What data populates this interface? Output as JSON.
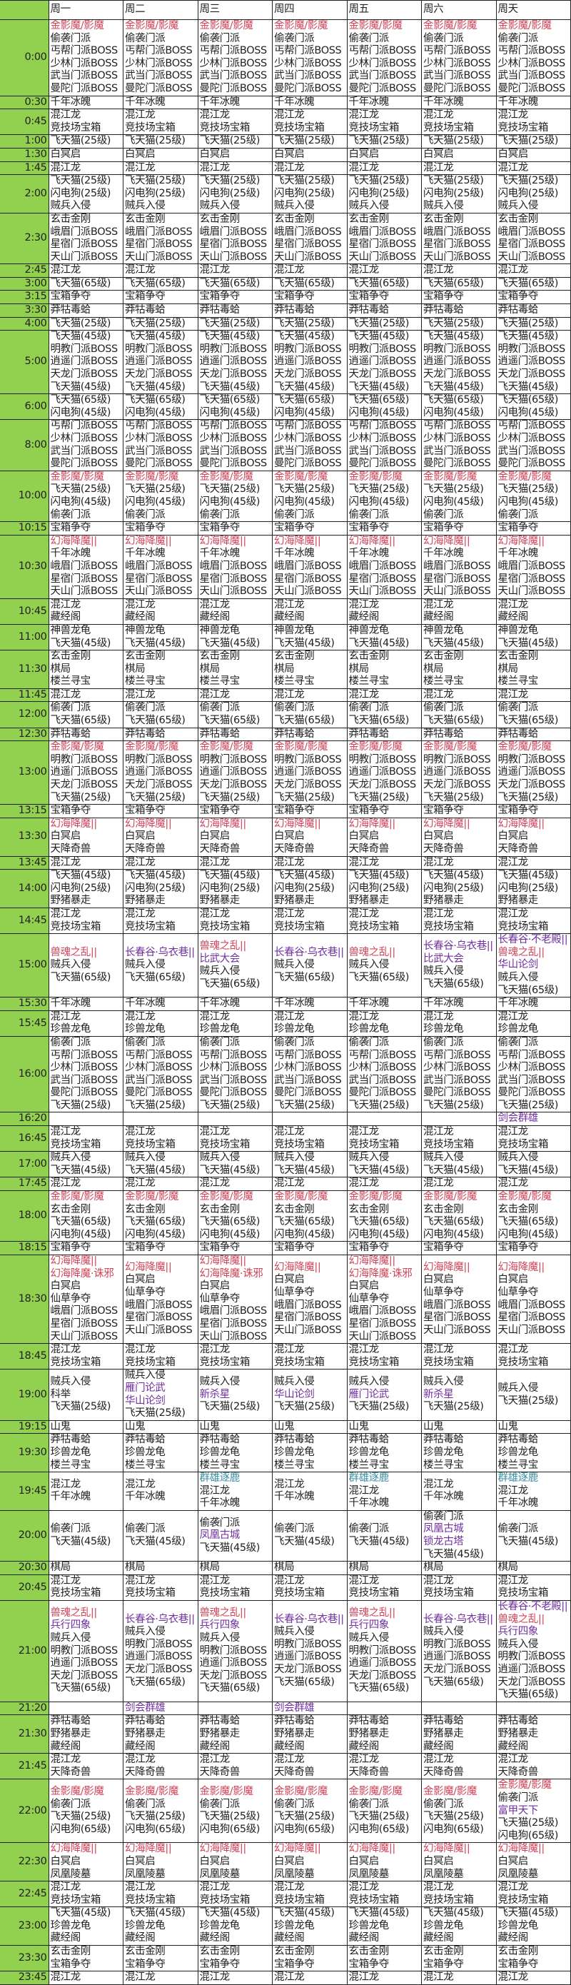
{
  "colors": {
    "red": "#d0455a",
    "purple": "#7030a0",
    "teal": "#3a8ca0",
    "time_bg": "#92d050"
  },
  "days": [
    "周一",
    "周二",
    "周三",
    "周四",
    "周五",
    "周六",
    "周天"
  ],
  "rows": [
    {
      "time": "0:00",
      "all": [
        {
          "t": "金影魔/影魔",
          "c": "red"
        },
        "偷袭门派",
        "丐帮门派BOSS",
        "少林门派BOSS",
        "武当门派BOSS",
        "曼陀门派BOSS"
      ]
    },
    {
      "time": "0:30",
      "all": [
        "千年冰魄"
      ]
    },
    {
      "time": "0:45",
      "all": [
        "混江龙",
        "竞技场宝箱"
      ]
    },
    {
      "time": "1:00",
      "all": [
        "飞天猫(25级)"
      ]
    },
    {
      "time": "1:30",
      "all": [
        "白冥启"
      ]
    },
    {
      "time": "1:45",
      "all": [
        "混江龙"
      ]
    },
    {
      "time": "2:00",
      "all": [
        "飞天猫(25级)",
        "闪电狗(25级)",
        "贼兵入侵"
      ]
    },
    {
      "time": "2:30",
      "all": [
        "玄击金刚",
        "峨眉门派BOSS",
        "星宿门派BOSS",
        "天山门派BOSS"
      ]
    },
    {
      "time": "2:45",
      "all": [
        "混江龙"
      ]
    },
    {
      "time": "3:00",
      "all": [
        "飞天猫(65级)"
      ]
    },
    {
      "time": "3:15",
      "all": [
        "宝箱争夺"
      ]
    },
    {
      "time": "3:30",
      "all": [
        "莽牯毒蛤"
      ]
    },
    {
      "time": "4:00",
      "all": [
        "飞天猫(25级)"
      ]
    },
    {
      "time": "5:00",
      "all": [
        "飞天猫(45级)",
        "明教门派BOSS",
        "逍遥门派BOSS",
        "天龙门派BOSS",
        "飞天猫(45级)"
      ]
    },
    {
      "time": "6:00",
      "all": [
        "飞天猫(65级)",
        "闪电狗(45级)"
      ]
    },
    {
      "time": "8:00",
      "all": [
        "丐帮门派BOSS",
        "少林门派BOSS",
        "武当门派BOSS",
        "曼陀门派BOSS"
      ]
    },
    {
      "time": "10:00",
      "all": [
        {
          "t": "金影魔/影魔",
          "c": "red"
        },
        "飞天猫(25级)",
        "闪电狗(45级)",
        "偷袭门派"
      ]
    },
    {
      "time": "10:15",
      "all": [
        "宝箱争夺"
      ]
    },
    {
      "time": "10:30",
      "all": [
        {
          "t": "幻海降魔||",
          "c": "red"
        },
        "千年冰魄",
        "峨眉门派BOSS",
        "星宿门派BOSS",
        "天山门派BOSS"
      ]
    },
    {
      "time": "10:45",
      "all": [
        "混江龙",
        "藏经阁"
      ]
    },
    {
      "time": "11:00",
      "all": [
        "神兽龙龟",
        "飞天猫(45级)"
      ]
    },
    {
      "time": "11:30",
      "all": [
        "玄击金刚",
        "棋局",
        "楼兰寻宝"
      ]
    },
    {
      "time": "11:45",
      "all": [
        "混江龙"
      ]
    },
    {
      "time": "12:00",
      "all": [
        "偷袭门派",
        "飞天猫(65级)"
      ]
    },
    {
      "time": "12:30",
      "all": [
        "莽牯毒蛤"
      ]
    },
    {
      "time": "13:00",
      "all": [
        {
          "t": "金影魔/影魔",
          "c": "red"
        },
        "明教门派BOSS",
        "逍遥门派BOSS",
        "天龙门派BOSS",
        "飞天猫(25级)"
      ]
    },
    {
      "time": "13:15",
      "all": [
        "宝箱争夺"
      ]
    },
    {
      "time": "13:30",
      "all": [
        {
          "t": "幻海降魔||",
          "c": "red"
        },
        "白冥启",
        "天降奇兽"
      ]
    },
    {
      "time": "13:45",
      "all": [
        "混江龙"
      ]
    },
    {
      "time": "14:00",
      "all": [
        "飞天猫(45级)",
        "闪电狗(25级)",
        "野猪暴走"
      ]
    },
    {
      "time": "14:45",
      "all": [
        "混江龙",
        "竞技场宝箱"
      ]
    },
    {
      "time": "15:00",
      "days": [
        [
          {
            "t": "兽魂之乱||",
            "c": "red"
          },
          "贼兵入侵",
          "飞天猫(65级)"
        ],
        [
          {
            "t": "长春谷·乌衣巷||",
            "c": "purple"
          },
          "贼兵入侵",
          "飞天猫(65级)"
        ],
        [
          {
            "t": "兽魂之乱||",
            "c": "red"
          },
          {
            "t": "比武大会",
            "c": "purple"
          },
          "贼兵入侵",
          "飞天猫(65级)"
        ],
        [
          {
            "t": "长春谷·乌衣巷||",
            "c": "purple"
          },
          "贼兵入侵",
          "飞天猫(65级)"
        ],
        [
          {
            "t": "兽魂之乱||",
            "c": "red"
          },
          "贼兵入侵",
          "飞天猫(65级)"
        ],
        [
          {
            "t": "长春谷·乌衣巷||",
            "c": "purple"
          },
          {
            "t": "比武大会",
            "c": "purple"
          },
          "贼兵入侵",
          "飞天猫(65级)"
        ],
        [
          {
            "t": "长春谷·不老殿||",
            "c": "purple"
          },
          {
            "t": "兽魂之乱||",
            "c": "red"
          },
          {
            "t": "华山论剑",
            "c": "purple"
          },
          "贼兵入侵",
          "飞天猫(65级)"
        ]
      ]
    },
    {
      "time": "15:30",
      "all": [
        "千年冰魄"
      ]
    },
    {
      "time": "15:45",
      "all": [
        "混江龙",
        "珍兽龙龟"
      ]
    },
    {
      "time": "16:00",
      "all": [
        "偷袭门派",
        "丐帮门派BOSS",
        "少林门派BOSS",
        "武当门派BOSS",
        "曼陀门派BOSS",
        "飞天猫(25级)"
      ]
    },
    {
      "time": "16:20",
      "days": [
        [],
        [],
        [],
        [],
        [],
        [],
        [
          {
            "t": "剑会群雄",
            "c": "purple"
          }
        ]
      ]
    },
    {
      "time": "16:45",
      "all": [
        "混江龙",
        "竞技场宝箱"
      ]
    },
    {
      "time": "17:00",
      "all": [
        "贼兵入侵",
        "飞天猫(45级)"
      ]
    },
    {
      "time": "17:45",
      "all": [
        "混江龙"
      ]
    },
    {
      "time": "18:00",
      "all": [
        {
          "t": "金影魔/影魔",
          "c": "red"
        },
        "玄击金刚",
        "飞天猫(65级)",
        "闪电狗(45级)"
      ]
    },
    {
      "time": "18:15",
      "all": [
        "宝箱争夺"
      ]
    },
    {
      "time": "18:30",
      "days": [
        [
          {
            "t": "幻海降魔||",
            "c": "red"
          },
          {
            "t": "幻海降魔·诛邪",
            "c": "red"
          },
          "白冥启",
          "仙草争夺",
          "峨眉门派BOSS",
          "星宿门派BOSS",
          "天山门派BOSS"
        ],
        [
          {
            "t": "幻海降魔||",
            "c": "red"
          },
          "白冥启",
          "仙草争夺",
          "峨眉门派BOSS",
          "星宿门派BOSS",
          "天山门派BOSS"
        ],
        [
          {
            "t": "幻海降魔||",
            "c": "red"
          },
          {
            "t": "幻海降魔·诛邪",
            "c": "red"
          },
          "白冥启",
          "仙草争夺",
          "峨眉门派BOSS",
          "星宿门派BOSS",
          "天山门派BOSS"
        ],
        [
          {
            "t": "幻海降魔||",
            "c": "red"
          },
          "白冥启",
          "仙草争夺",
          "峨眉门派BOSS",
          "星宿门派BOSS",
          "天山门派BOSS"
        ],
        [
          {
            "t": "幻海降魔||",
            "c": "red"
          },
          {
            "t": "幻海降魔·诛邪",
            "c": "red"
          },
          "白冥启",
          "仙草争夺",
          "峨眉门派BOSS",
          "星宿门派BOSS",
          "天山门派BOSS"
        ],
        [
          {
            "t": "幻海降魔||",
            "c": "red"
          },
          "白冥启",
          "仙草争夺",
          "峨眉门派BOSS",
          "星宿门派BOSS",
          "天山门派BOSS"
        ],
        [
          {
            "t": "幻海降魔||",
            "c": "red"
          },
          "白冥启",
          "仙草争夺",
          "峨眉门派BOSS",
          "星宿门派BOSS",
          "天山门派BOSS"
        ]
      ]
    },
    {
      "time": "18:45",
      "all": [
        "混江龙",
        "竞技场宝箱"
      ]
    },
    {
      "time": "19:00",
      "days": [
        [
          "贼兵入侵",
          "科举",
          "飞天猫(25级)"
        ],
        [
          "贼兵入侵",
          {
            "t": "雁门论武",
            "c": "purple"
          },
          {
            "t": "华山论剑",
            "c": "purple"
          },
          "飞天猫(25级)"
        ],
        [
          "贼兵入侵",
          {
            "t": "新杀星",
            "c": "purple"
          },
          "飞天猫(25级)"
        ],
        [
          "贼兵入侵",
          {
            "t": "华山论剑",
            "c": "purple"
          },
          "飞天猫(25级)"
        ],
        [
          "贼兵入侵",
          {
            "t": "雁门论武",
            "c": "purple"
          },
          "飞天猫(25级)"
        ],
        [
          "贼兵入侵",
          {
            "t": "新杀星",
            "c": "purple"
          },
          "飞天猫(25级)"
        ],
        [
          "贼兵入侵",
          "飞天猫(25级)"
        ]
      ]
    },
    {
      "time": "19:15",
      "all": [
        "山鬼"
      ]
    },
    {
      "time": "19:30",
      "all": [
        "莽牯毒蛤",
        "珍兽龙龟",
        "楼兰寻宝"
      ]
    },
    {
      "time": "19:45",
      "days": [
        [
          "混江龙",
          "千年冰魄"
        ],
        [
          "混江龙",
          "千年冰魄"
        ],
        [
          {
            "t": "群雄逐鹿",
            "c": "teal"
          },
          "混江龙",
          "千年冰魄"
        ],
        [
          "混江龙",
          "千年冰魄"
        ],
        [
          {
            "t": "群雄逐鹿",
            "c": "teal"
          },
          "混江龙",
          "千年冰魄"
        ],
        [
          "混江龙",
          "千年冰魄"
        ],
        [
          {
            "t": "群雄逐鹿",
            "c": "teal"
          },
          "混江龙",
          "千年冰魄"
        ]
      ]
    },
    {
      "time": "20:00",
      "days": [
        [
          "偷袭门派",
          "飞天猫(45级)"
        ],
        [
          "偷袭门派",
          "飞天猫(45级)"
        ],
        [
          "偷袭门派",
          {
            "t": "凤凰古城",
            "c": "purple"
          },
          "飞天猫(45级)"
        ],
        [
          "偷袭门派",
          "飞天猫(45级)"
        ],
        [
          "偷袭门派",
          "飞天猫(45级)"
        ],
        [
          "偷袭门派",
          {
            "t": "凤凰古城",
            "c": "purple"
          },
          {
            "t": "锁龙古塔",
            "c": "purple"
          },
          "飞天猫(45级)"
        ],
        [
          "偷袭门派",
          "飞天猫(45级)"
        ]
      ]
    },
    {
      "time": "20:30",
      "all": [
        "棋局"
      ]
    },
    {
      "time": "20:45",
      "all": [
        "混江龙",
        "竞技场宝箱"
      ]
    },
    {
      "time": "21:00",
      "days": [
        [
          {
            "t": "兽魂之乱||",
            "c": "red"
          },
          {
            "t": "兵行四象",
            "c": "purple"
          },
          "贼兵入侵",
          "明教门派BOSS",
          "逍遥门派BOSS",
          "天龙门派BOSS",
          "飞天猫(65级)"
        ],
        [
          {
            "t": "长春谷·乌衣巷||",
            "c": "purple"
          },
          "贼兵入侵",
          "明教门派BOSS",
          "逍遥门派BOSS",
          "天龙门派BOSS",
          "飞天猫(65级)"
        ],
        [
          {
            "t": "兽魂之乱||",
            "c": "red"
          },
          {
            "t": "兵行四象",
            "c": "purple"
          },
          "贼兵入侵",
          "明教门派BOSS",
          "逍遥门派BOSS",
          "天龙门派BOSS",
          "飞天猫(65级)"
        ],
        [
          {
            "t": "长春谷·乌衣巷||",
            "c": "purple"
          },
          "贼兵入侵",
          "明教门派BOSS",
          "逍遥门派BOSS",
          "天龙门派BOSS",
          "飞天猫(65级)"
        ],
        [
          {
            "t": "兽魂之乱||",
            "c": "red"
          },
          {
            "t": "兵行四象",
            "c": "purple"
          },
          "贼兵入侵",
          "明教门派BOSS",
          "逍遥门派BOSS",
          "天龙门派BOSS",
          "飞天猫(65级)"
        ],
        [
          {
            "t": "长春谷·乌衣巷||",
            "c": "purple"
          },
          "贼兵入侵",
          "明教门派BOSS",
          "逍遥门派BOSS",
          "天龙门派BOSS",
          "飞天猫(65级)"
        ],
        [
          {
            "t": "长春谷·不老殿||",
            "c": "purple"
          },
          {
            "t": "兽魂之乱||",
            "c": "red"
          },
          {
            "t": "兵行四象",
            "c": "purple"
          },
          "贼兵入侵",
          "明教门派BOSS",
          "逍遥门派BOSS",
          "天龙门派BOSS",
          "飞天猫(65级)"
        ]
      ]
    },
    {
      "time": "21:20",
      "days": [
        [],
        [
          {
            "t": "剑会群雄",
            "c": "purple"
          }
        ],
        [],
        [
          {
            "t": "剑会群雄",
            "c": "purple"
          }
        ],
        [],
        [],
        []
      ]
    },
    {
      "time": "21:30",
      "all": [
        "莽牯毒蛤",
        "野猪暴走",
        "藏经阁"
      ]
    },
    {
      "time": "21:45",
      "all": [
        "混江龙",
        "天降奇兽"
      ]
    },
    {
      "time": "22:00",
      "days": [
        [
          {
            "t": "金影魔/影魔",
            "c": "red"
          },
          "偷袭门派",
          "飞天猫(25级)",
          "闪电狗(65级)"
        ],
        [
          {
            "t": "金影魔/影魔",
            "c": "red"
          },
          "偷袭门派",
          "飞天猫(25级)",
          "闪电狗(65级)"
        ],
        [
          {
            "t": "金影魔/影魔",
            "c": "red"
          },
          "偷袭门派",
          "飞天猫(25级)",
          "闪电狗(65级)"
        ],
        [
          {
            "t": "金影魔/影魔",
            "c": "red"
          },
          "偷袭门派",
          "飞天猫(25级)",
          "闪电狗(65级)"
        ],
        [
          {
            "t": "金影魔/影魔",
            "c": "red"
          },
          "偷袭门派",
          "飞天猫(25级)",
          "闪电狗(65级)"
        ],
        [
          {
            "t": "金影魔/影魔",
            "c": "red"
          },
          "偷袭门派",
          "飞天猫(25级)",
          "闪电狗(65级)"
        ],
        [
          {
            "t": "金影魔/影魔",
            "c": "red"
          },
          "偷袭门派",
          {
            "t": "富甲天下",
            "c": "purple"
          },
          "飞天猫(25级)",
          "闪电狗(65级)"
        ]
      ]
    },
    {
      "time": "22:30",
      "all": [
        {
          "t": "幻海降魔||",
          "c": "red"
        },
        "白冥启",
        "凤凰陵墓"
      ]
    },
    {
      "time": "22:45",
      "all": [
        "混江龙",
        "竞技场宝箱"
      ]
    },
    {
      "time": "23:00",
      "all": [
        "飞天猫(45级)",
        "珍兽龙龟",
        "藏经阁"
      ]
    },
    {
      "time": "23:30",
      "all": [
        "玄击金刚",
        "宝箱争夺"
      ]
    },
    {
      "time": "23:45",
      "all": [
        "混江龙"
      ]
    }
  ]
}
